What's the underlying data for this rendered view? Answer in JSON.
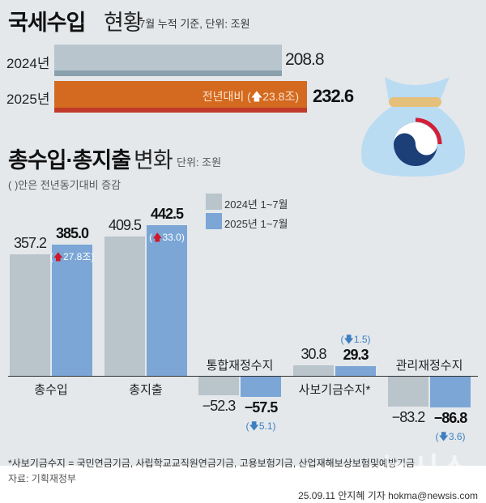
{
  "header": {
    "title_bold": "국세수입",
    "title_light": "현황",
    "note": "7월 누적 기준, 단위: 조원"
  },
  "tax_revenue": {
    "rows": [
      {
        "label": "2024년",
        "value": "208.8",
        "amount": 208.8
      },
      {
        "label": "2025년",
        "value": "232.6",
        "amount": 232.6,
        "change_prefix": "전년대비 (",
        "change": "23.8조)"
      }
    ],
    "colors": {
      "2024": "#b8c5cd",
      "2025": "#d36a1f"
    }
  },
  "section2": {
    "title_bold": "총수입·총지출",
    "title_light": "변화",
    "unit": "단위: 조원",
    "note": "( )안은 전년동기대비 증감"
  },
  "chart_data": {
    "type": "bar",
    "categories": [
      "총수입",
      "총지출",
      "통합재정수지",
      "사보기금수지*",
      "관리재정수지"
    ],
    "series": [
      {
        "name": "2024년 1~7월",
        "values": [
          357.2,
          409.5,
          -52.3,
          30.8,
          -83.2
        ],
        "labels": [
          "357.2",
          "409.5",
          "−52.3",
          "30.8",
          "−83.2"
        ],
        "color": "#b9c4cb"
      },
      {
        "name": "2025년 1~7월",
        "values": [
          385.0,
          442.5,
          -57.5,
          29.3,
          -86.8
        ],
        "labels": [
          "385.0",
          "442.5",
          "−57.5",
          "29.3",
          "−86.8"
        ],
        "color": "#7ba6d6"
      }
    ],
    "changes": [
      "27.8조",
      "33.0",
      "5.1",
      "1.5",
      "3.6"
    ],
    "change_direction": [
      "up",
      "up",
      "down",
      "down",
      "down"
    ],
    "legend_placement": "top-center"
  },
  "footer": {
    "footnote": "*사보기금수지 = 국민연금기금, 사립학교교직원연금기금, 고용보험기금, 산업재해보상보험및예방기금",
    "source": "자료: 기획재정부",
    "credit": "25.09.11 안지혜 기자 hokma@newsis.com",
    "watermark": "뉴시스"
  }
}
